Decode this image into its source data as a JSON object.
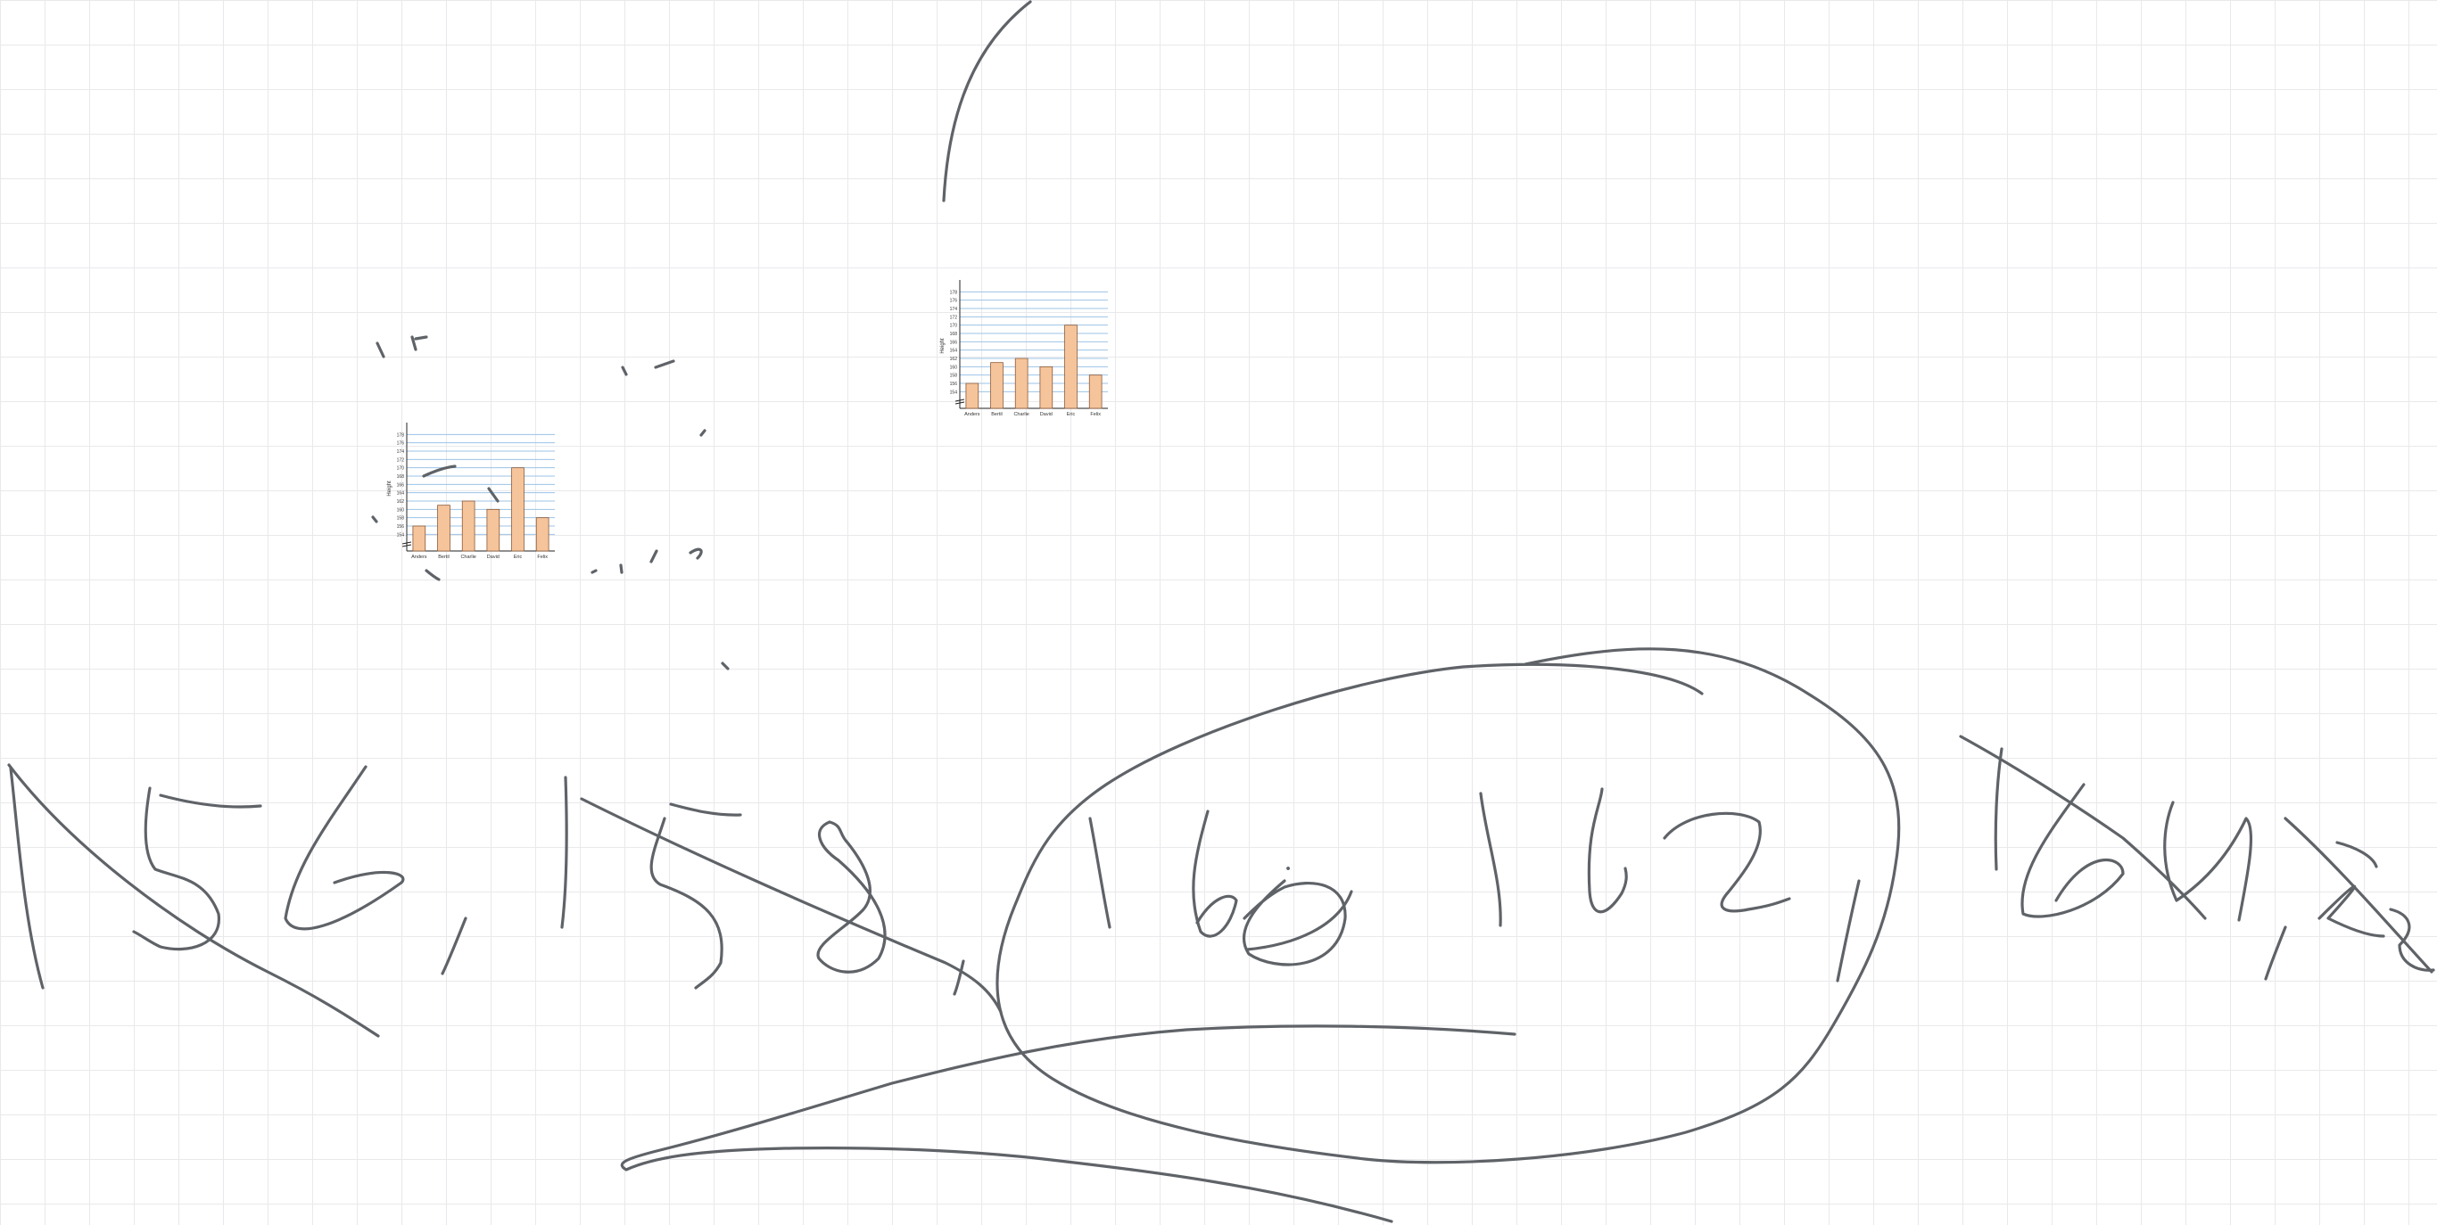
{
  "canvas": {
    "grid": true,
    "colors": {
      "background": "#ffffff",
      "grid": "#e9e9ec",
      "ink": "#5f6368",
      "bar_fill": "#f6c49b",
      "bar_stroke": "#8a5a38",
      "gridline": "#9cc3e6"
    }
  },
  "chart_data": [
    {
      "type": "bar",
      "categories": [
        "Anders",
        "Bertil",
        "Charlie",
        "David",
        "Eric",
        "Felix"
      ],
      "values": [
        156,
        161,
        162,
        160,
        170,
        158
      ],
      "title": "",
      "xlabel": "",
      "ylabel": "Height",
      "ylim": [
        150,
        180
      ],
      "yticks": [
        154,
        156,
        158,
        160,
        162,
        164,
        166,
        168,
        170,
        172,
        174,
        176,
        178
      ],
      "grid": true
    },
    {
      "type": "bar",
      "categories": [
        "Anders",
        "Bertil",
        "Charlie",
        "David",
        "Eric",
        "Felix"
      ],
      "values": [
        156,
        161,
        162,
        160,
        170,
        158
      ],
      "title": "",
      "xlabel": "",
      "ylabel": "Height",
      "ylim": [
        150,
        180
      ],
      "yticks": [
        154,
        156,
        158,
        160,
        162,
        164,
        166,
        168,
        170,
        172,
        174,
        176,
        178
      ],
      "grid": true
    }
  ],
  "handwriting": {
    "text": "156, 158, 160 162 164,2",
    "circled": "160 162"
  }
}
